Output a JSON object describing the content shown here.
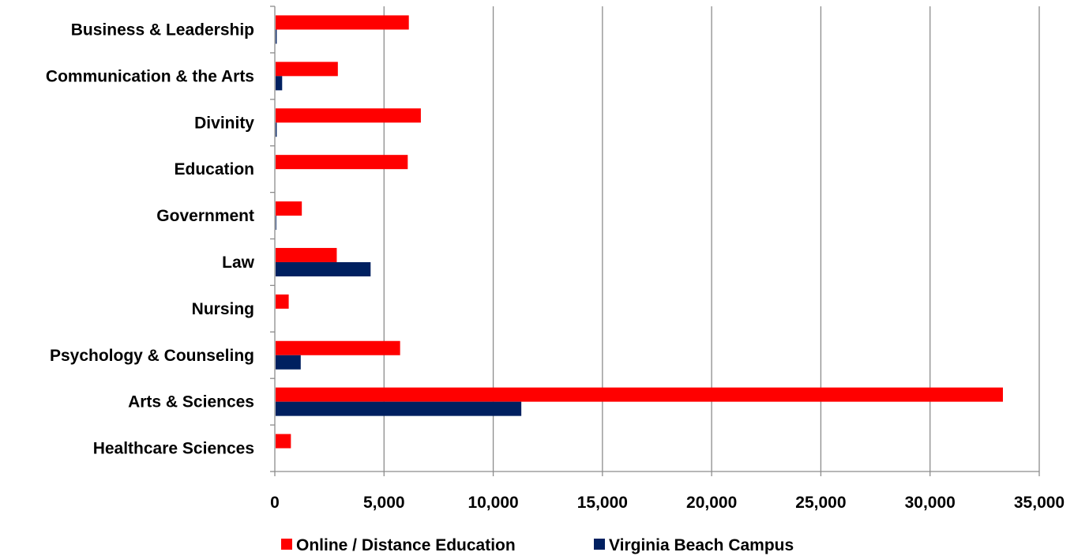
{
  "chart_data": {
    "type": "bar",
    "orientation": "horizontal",
    "categories": [
      "Business & Leadership",
      "Communication & the Arts",
      "Divinity",
      "Education",
      "Government",
      "Law",
      "Nursing",
      "Psychology & Counseling",
      "Arts & Sciences",
      "Healthcare Sciences"
    ],
    "series": [
      {
        "name": "Online / Distance Education",
        "color": "#ff0000",
        "values": [
          6100,
          2850,
          6650,
          6050,
          1200,
          2800,
          600,
          5700,
          33300,
          700
        ]
      },
      {
        "name": "Virginia Beach Campus",
        "color": "#002060",
        "values": [
          50,
          300,
          50,
          0,
          30,
          4350,
          0,
          1150,
          11250,
          0
        ]
      }
    ],
    "xlim": [
      0,
      35000
    ],
    "xticks": [
      0,
      5000,
      10000,
      15000,
      20000,
      25000,
      30000,
      35000
    ],
    "xtick_labels": [
      "0",
      "5,000",
      "10,000",
      "15,000",
      "20,000",
      "25,000",
      "30,000",
      "35,000"
    ],
    "grid": "vertical",
    "legend_position": "bottom"
  }
}
